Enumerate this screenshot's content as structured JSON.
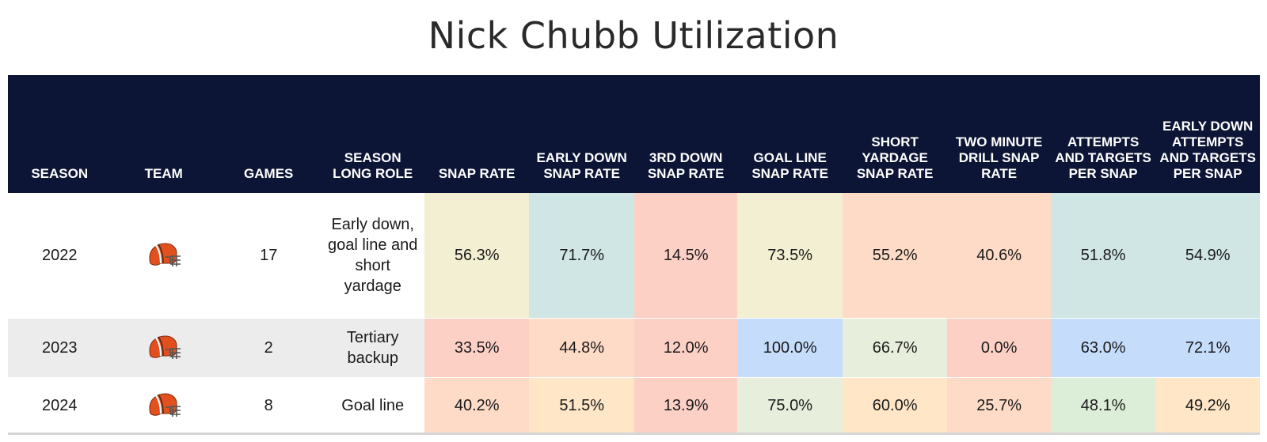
{
  "title": "Nick Chubb Utilization",
  "columns": [
    "SEASON",
    "TEAM",
    "GAMES",
    "SEASON LONG ROLE",
    "SNAP RATE",
    "EARLY DOWN SNAP RATE",
    "3RD DOWN SNAP RATE",
    "GOAL LINE SNAP RATE",
    "SHORT YARDAGE SNAP RATE",
    "TWO MINUTE DRILL SNAP RATE",
    "ATTEMPTS AND TARGETS PER SNAP",
    "EARLY DOWN ATTEMPTS AND TARGETS PER SNAP"
  ],
  "team_icon": "cleveland-browns-helmet-icon",
  "rows": [
    {
      "season": "2022",
      "games": "17",
      "role": "Early down, goal line and short yardage",
      "metrics": [
        "56.3%",
        "71.7%",
        "14.5%",
        "73.5%",
        "55.2%",
        "40.6%",
        "51.8%",
        "54.9%"
      ],
      "colors": [
        "#f2efd2",
        "#cfe6e4",
        "#fdd0c6",
        "#f2efd2",
        "#fddbc6",
        "#fddbc6",
        "#cfe6e4",
        "#cfe6e4"
      ]
    },
    {
      "season": "2023",
      "games": "2",
      "role": "Tertiary backup",
      "metrics": [
        "33.5%",
        "44.8%",
        "12.0%",
        "100.0%",
        "66.7%",
        "0.0%",
        "63.0%",
        "72.1%"
      ],
      "colors": [
        "#fdd0c6",
        "#fddbc6",
        "#fdd0c6",
        "#c5dcfb",
        "#e7eedb",
        "#fdd0c6",
        "#c5dcfb",
        "#c5dcfb"
      ]
    },
    {
      "season": "2024",
      "games": "8",
      "role": "Goal line",
      "metrics": [
        "40.2%",
        "51.5%",
        "13.9%",
        "75.0%",
        "60.0%",
        "25.7%",
        "48.1%",
        "49.2%"
      ],
      "colors": [
        "#fddbc6",
        "#fee6c7",
        "#fdd0c6",
        "#e7eedb",
        "#fee6c7",
        "#fddbc6",
        "#ddeed8",
        "#fee6c7"
      ]
    }
  ],
  "chart_data": {
    "type": "table",
    "title": "Nick Chubb Utilization",
    "categories": [
      "2022",
      "2023",
      "2024"
    ],
    "series": [
      {
        "name": "SNAP RATE",
        "values": [
          56.3,
          33.5,
          40.2
        ]
      },
      {
        "name": "EARLY DOWN SNAP RATE",
        "values": [
          71.7,
          44.8,
          51.5
        ]
      },
      {
        "name": "3RD DOWN SNAP RATE",
        "values": [
          14.5,
          12.0,
          13.9
        ]
      },
      {
        "name": "GOAL LINE SNAP RATE",
        "values": [
          73.5,
          100.0,
          75.0
        ]
      },
      {
        "name": "SHORT YARDAGE SNAP RATE",
        "values": [
          55.2,
          66.7,
          60.0
        ]
      },
      {
        "name": "TWO MINUTE DRILL SNAP RATE",
        "values": [
          40.6,
          0.0,
          25.7
        ]
      },
      {
        "name": "ATTEMPTS AND TARGETS PER SNAP",
        "values": [
          51.8,
          63.0,
          48.1
        ]
      },
      {
        "name": "EARLY DOWN ATTEMPTS AND TARGETS PER SNAP",
        "values": [
          54.9,
          72.1,
          49.2
        ]
      }
    ]
  }
}
